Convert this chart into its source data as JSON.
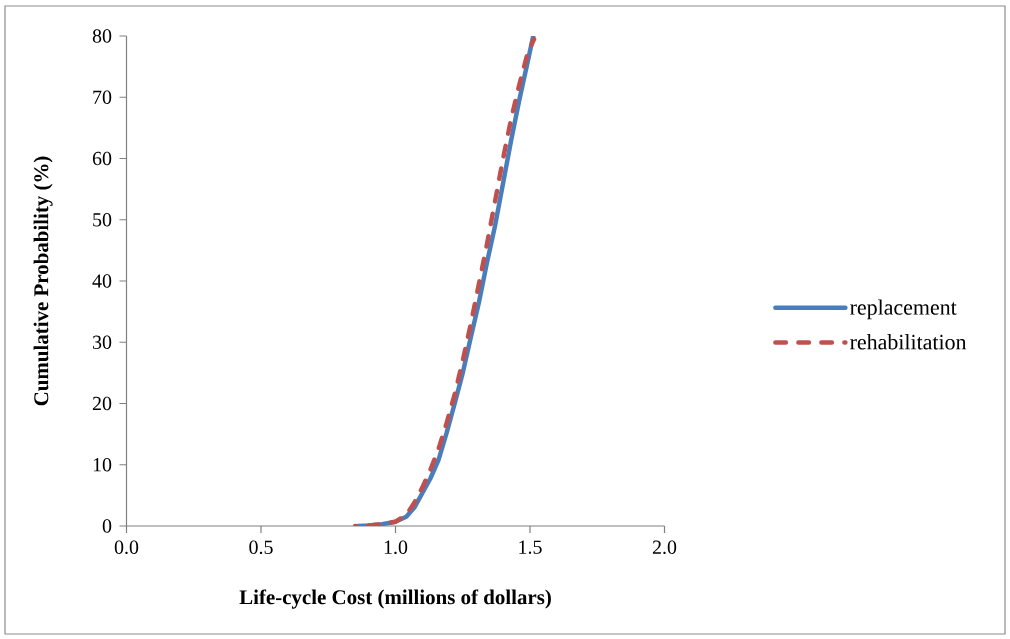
{
  "chart_data": {
    "type": "line",
    "xlabel": "Life-cycle Cost (millions of dollars)",
    "ylabel": "Cumulative Probability (%)",
    "xlim": [
      0,
      2
    ],
    "ylim": [
      0,
      80
    ],
    "xticks": [
      {
        "value": 0,
        "label": "0.0"
      },
      0.5,
      {
        "value": 1,
        "label": "1.0"
      },
      1.5,
      {
        "value": 2,
        "label": "2.0"
      }
    ],
    "yticks": [
      0,
      10,
      20,
      30,
      40,
      50,
      60,
      70,
      80
    ],
    "legend": "right",
    "series": [
      {
        "name": "replacement",
        "color": "#4a7ebb",
        "line_style": "solid",
        "x": [
          0.86,
          0.9,
          0.95,
          1.0,
          1.04,
          1.07,
          1.1,
          1.13,
          1.16,
          1.19,
          1.22,
          1.25,
          1.28,
          1.31,
          1.34,
          1.37,
          1.4,
          1.43,
          1.46,
          1.49,
          1.512
        ],
        "values": [
          0,
          0.1,
          0.3,
          0.7,
          1.5,
          3,
          5.4,
          7.8,
          10.8,
          15.2,
          20,
          25,
          30.8,
          36.5,
          43,
          49,
          56,
          63,
          69.5,
          75.5,
          80
        ]
      },
      {
        "name": "rehabilitation",
        "color": "#c0504d",
        "line_style": "dashed",
        "x": [
          0.85,
          0.9,
          0.95,
          1.0,
          1.04,
          1.07,
          1.1,
          1.13,
          1.16,
          1.19,
          1.22,
          1.25,
          1.28,
          1.31,
          1.34,
          1.37,
          1.4,
          1.43,
          1.46,
          1.49,
          1.515
        ],
        "values": [
          0,
          0.1,
          0.3,
          0.7,
          1.8,
          3.8,
          6.3,
          9.2,
          12.6,
          16.8,
          21.5,
          27,
          33,
          39.5,
          46,
          53,
          60,
          66.5,
          72,
          77,
          79.5
        ]
      }
    ]
  }
}
